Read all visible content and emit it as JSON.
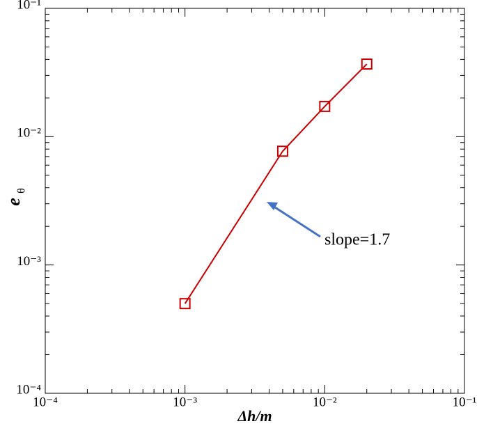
{
  "chart_data": {
    "type": "line",
    "x_label": "Δh/m",
    "y_label": "e",
    "y_label_sub": "θ",
    "x": [
      0.001,
      0.005,
      0.01,
      0.02
    ],
    "series": [
      {
        "name": "e",
        "color": "#cc0000",
        "values": [
          0.0005,
          0.0077,
          0.0172,
          0.0368
        ]
      }
    ],
    "xlim": [
      0.0001,
      0.1
    ],
    "ylim": [
      0.0001,
      0.1
    ],
    "log_x": true,
    "log_y": true,
    "xticks": [
      {
        "value": 0.0001,
        "label": "10⁻⁴"
      },
      {
        "value": 0.001,
        "label": "10⁻³"
      },
      {
        "value": 0.01,
        "label": "10⁻²"
      },
      {
        "value": 0.1,
        "label": "10⁻¹"
      }
    ],
    "yticks": [
      {
        "value": 0.0001,
        "label": "10⁻⁴"
      },
      {
        "value": 0.001,
        "label": "10⁻³"
      },
      {
        "value": 0.01,
        "label": "10⁻²"
      },
      {
        "value": 0.1,
        "label": "10⁻¹"
      }
    ],
    "annotation": "slope=1.7",
    "annotation_color": "#4472c4"
  }
}
